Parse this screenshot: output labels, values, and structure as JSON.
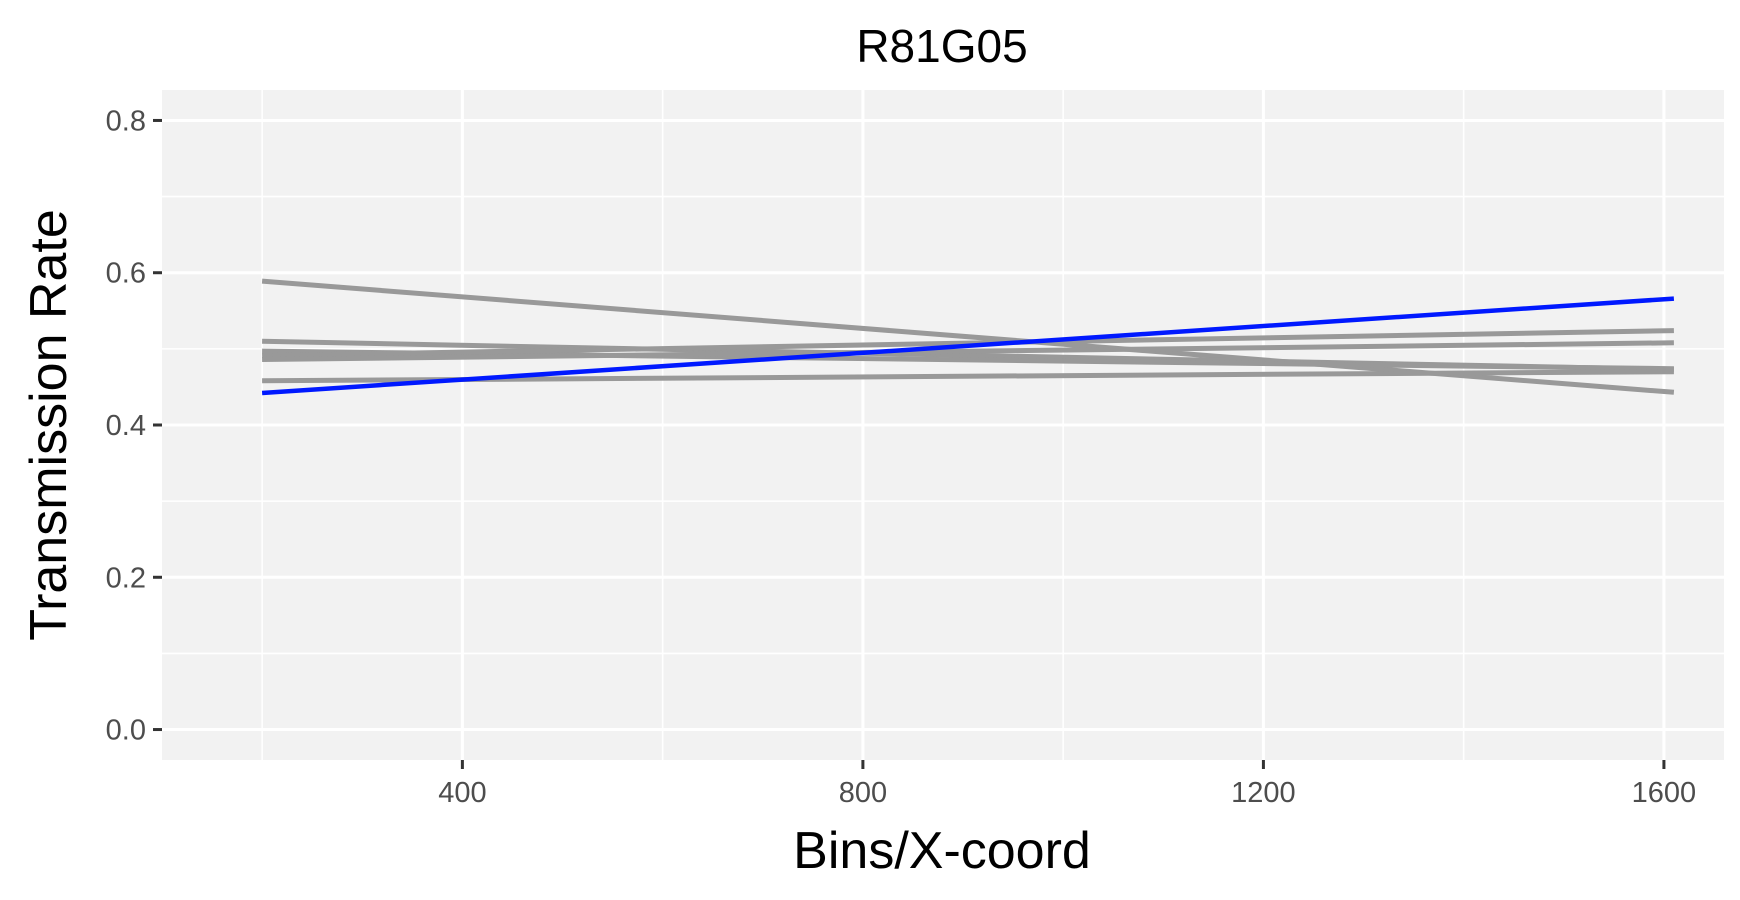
{
  "chart_data": {
    "type": "line",
    "title": "R81G05",
    "xlabel": "Bins/X-coord",
    "ylabel": "Transmission Rate",
    "xlim": [
      100,
      1660
    ],
    "ylim": [
      -0.04,
      0.84
    ],
    "x_ticks": [
      400,
      800,
      1200,
      1600
    ],
    "y_ticks": [
      0.0,
      0.2,
      0.4,
      0.6,
      0.8
    ],
    "x_tick_labels": [
      "400",
      "800",
      "1200",
      "1600"
    ],
    "y_tick_labels": [
      "0.0",
      "0.2",
      "0.4",
      "0.6",
      "0.8"
    ],
    "grid": true,
    "legend": "none",
    "colors": {
      "panel": "#f2f2f2",
      "grid": "#ffffff",
      "gray_series": "#999999",
      "highlight_series": "#0019ff"
    },
    "series": [
      {
        "x": [
          200,
          1610
        ],
        "y": [
          0.589,
          0.443
        ],
        "color": "#999999"
      },
      {
        "x": [
          200,
          1610
        ],
        "y": [
          0.51,
          0.473
        ],
        "color": "#999999"
      },
      {
        "x": [
          200,
          1610
        ],
        "y": [
          0.497,
          0.474
        ],
        "color": "#999999"
      },
      {
        "x": [
          200,
          1610
        ],
        "y": [
          0.491,
          0.524
        ],
        "color": "#999999"
      },
      {
        "x": [
          200,
          1610
        ],
        "y": [
          0.486,
          0.508
        ],
        "color": "#999999"
      },
      {
        "x": [
          200,
          1610
        ],
        "y": [
          0.458,
          0.47
        ],
        "color": "#999999"
      },
      {
        "x": [
          200,
          1610
        ],
        "y": [
          0.442,
          0.566
        ],
        "color": "#0019ff"
      }
    ]
  }
}
